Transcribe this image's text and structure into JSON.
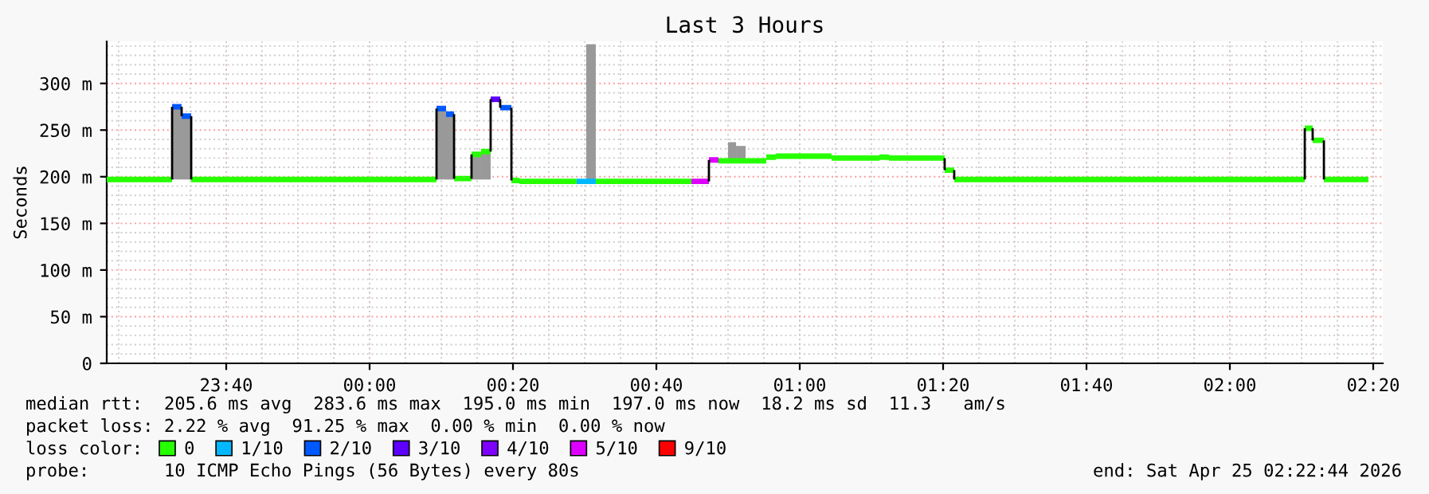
{
  "chart_data": {
    "type": "line",
    "title": "Last 3 Hours",
    "ylabel": "Seconds",
    "legend_title": "loss color:",
    "legend": "bottom",
    "grid": true,
    "xlim": [
      "2026-04-24T23:23:20",
      "2026-04-25T02:21:20"
    ],
    "ylim": [
      0,
      345
    ],
    "xticks": [
      {
        "value": "2026-04-24T23:40",
        "label": "23:40"
      },
      {
        "value": "2026-04-25T00:00",
        "label": "00:00"
      },
      {
        "value": "2026-04-25T00:20",
        "label": "00:20"
      },
      {
        "value": "2026-04-25T00:40",
        "label": "00:40"
      },
      {
        "value": "2026-04-25T01:00",
        "label": "01:00"
      },
      {
        "value": "2026-04-25T01:20",
        "label": "01:20"
      },
      {
        "value": "2026-04-25T01:40",
        "label": "01:40"
      },
      {
        "value": "2026-04-25T02:00",
        "label": "02:00"
      },
      {
        "value": "2026-04-25T02:20",
        "label": "02:20"
      }
    ],
    "yticks": [
      0,
      {
        "value": 50,
        "label": "50 m"
      },
      {
        "value": 100,
        "label": "100 m"
      },
      {
        "value": 150,
        "label": "150 m"
      },
      {
        "value": 200,
        "label": "200 m"
      },
      {
        "value": 250,
        "label": "250 m"
      },
      {
        "value": 300,
        "label": "300 m"
      }
    ],
    "series": [
      {
        "name": "0",
        "color": "#26ff00",
        "x": [
          "2026-04-24T23:23:20",
          "2026-04-24T23:32:27",
          null,
          "2026-04-24T23:35:07",
          "2026-04-25T00:09:20",
          null,
          "2026-04-25T00:11:47",
          "2026-04-25T00:14:13",
          null,
          "2026-04-25T00:14:13",
          "2026-04-25T00:15:33",
          null,
          "2026-04-25T00:15:33",
          "2026-04-25T00:16:53",
          null,
          "2026-04-25T00:19:47",
          "2026-04-25T00:20:53",
          null,
          "2026-04-25T00:20:53",
          "2026-04-25T00:28:53",
          null,
          "2026-04-25T00:31:33",
          "2026-04-25T00:44:53",
          null,
          "2026-04-25T00:48:40",
          "2026-04-25T00:50:00",
          null,
          "2026-04-25T00:50:00",
          "2026-04-25T00:51:07",
          null,
          "2026-04-25T00:51:07",
          "2026-04-25T00:52:27",
          null,
          "2026-04-25T00:52:27",
          "2026-04-25T00:55:20",
          null,
          "2026-04-25T00:55:20",
          "2026-04-25T00:56:40",
          null,
          "2026-04-25T00:56:40",
          "2026-04-25T01:04:27",
          null,
          "2026-04-25T01:04:27",
          "2026-04-25T01:11:07",
          null,
          "2026-04-25T01:11:07",
          "2026-04-25T01:12:27",
          null,
          "2026-04-25T01:12:27",
          "2026-04-25T01:20:13",
          null,
          "2026-04-25T01:20:13",
          "2026-04-25T01:21:33",
          null,
          "2026-04-25T01:21:33",
          "2026-04-25T02:10:27",
          null,
          "2026-04-25T02:10:27",
          "2026-04-25T02:11:33",
          null,
          "2026-04-25T02:11:33",
          "2026-04-25T02:13:07",
          null,
          "2026-04-25T02:13:07",
          "2026-04-25T02:19:20"
        ],
        "values": [
          197,
          197,
          null,
          197,
          197,
          null,
          198,
          198,
          null,
          224,
          224,
          null,
          227,
          227,
          null,
          196,
          196,
          null,
          195,
          195,
          null,
          195,
          195,
          null,
          217,
          217,
          null,
          217,
          217,
          null,
          217,
          217,
          null,
          217,
          217,
          null,
          221,
          221,
          null,
          222,
          222,
          null,
          220,
          220,
          null,
          221,
          221,
          null,
          220,
          220,
          null,
          207,
          207,
          null,
          197,
          197,
          null,
          252,
          252,
          null,
          239,
          239,
          null,
          197,
          197
        ],
        "lower": [
          null,
          null,
          null,
          null,
          null,
          null,
          null,
          null,
          null,
          197,
          197,
          null,
          197,
          197,
          null,
          null,
          null,
          null,
          null,
          null,
          null,
          null,
          null,
          null,
          null,
          null,
          null,
          217,
          217,
          null,
          217,
          217,
          null,
          null,
          null,
          null,
          null,
          null,
          null,
          null,
          null,
          null,
          null,
          null,
          null,
          null,
          null,
          null,
          null,
          null,
          null,
          null,
          null,
          null,
          null,
          null,
          null,
          null,
          null,
          null,
          null,
          null,
          null,
          null,
          null
        ],
        "upper": [
          null,
          null,
          null,
          null,
          null,
          null,
          null,
          null,
          null,
          224,
          224,
          null,
          227,
          227,
          null,
          null,
          null,
          null,
          null,
          null,
          null,
          null,
          null,
          null,
          null,
          null,
          null,
          237,
          237,
          null,
          233,
          233,
          null,
          null,
          null,
          null,
          null,
          null,
          null,
          null,
          null,
          null,
          null,
          null,
          null,
          null,
          null,
          null,
          null,
          null,
          null,
          null,
          null,
          null,
          null,
          null,
          null,
          null,
          null,
          null,
          null,
          null,
          null,
          null,
          null
        ]
      },
      {
        "name": "1/10",
        "color": "#00b8ff",
        "x": [
          "2026-04-25T00:28:53",
          "2026-04-25T00:30:13",
          null,
          "2026-04-25T00:30:13",
          "2026-04-25T00:31:33"
        ],
        "values": [
          195,
          195,
          null,
          195,
          195
        ],
        "lower": [
          null,
          null,
          null,
          195,
          195
        ],
        "upper": [
          null,
          null,
          null,
          342,
          342
        ]
      },
      {
        "name": "2/10",
        "color": "#0059ff",
        "x": [
          "2026-04-24T23:32:27",
          "2026-04-24T23:33:47",
          null,
          "2026-04-24T23:33:47",
          "2026-04-24T23:35:07",
          null,
          "2026-04-25T00:09:20",
          "2026-04-25T00:10:40",
          null,
          "2026-04-25T00:10:40",
          "2026-04-25T00:11:47",
          null,
          "2026-04-25T00:18:13",
          "2026-04-25T00:19:47"
        ],
        "values": [
          275,
          275,
          null,
          265,
          265,
          null,
          273,
          273,
          null,
          267,
          267,
          null,
          274,
          274
        ],
        "lower": [
          197,
          197,
          null,
          197,
          197,
          null,
          197,
          197,
          null,
          197,
          197,
          null,
          null,
          null
        ],
        "upper": [
          275,
          275,
          null,
          265,
          265,
          null,
          273,
          273,
          null,
          267,
          267,
          null,
          null,
          null
        ]
      },
      {
        "name": "3/10",
        "color": "#5e00ff",
        "x": [
          "2026-04-25T00:16:53",
          "2026-04-25T00:18:13"
        ],
        "values": [
          283,
          283
        ]
      },
      {
        "name": "4/10",
        "color": "#7e00ff"
      },
      {
        "name": "5/10",
        "color": "#dd00ff",
        "x": [
          "2026-04-25T00:44:53",
          "2026-04-25T00:47:20",
          null,
          "2026-04-25T00:47:20",
          "2026-04-25T00:48:40"
        ],
        "values": [
          195,
          195,
          null,
          218,
          218
        ]
      },
      {
        "name": "9/10",
        "color": "#ff0000"
      },
      {
        "color": "#000000",
        "x": [
          "2026-04-24T23:32:27",
          "2026-04-24T23:32:27",
          null,
          "2026-04-24T23:33:47",
          "2026-04-24T23:33:47",
          null,
          "2026-04-24T23:35:07",
          "2026-04-24T23:35:07",
          null,
          "2026-04-25T00:09:20",
          "2026-04-25T00:09:20",
          null,
          "2026-04-25T00:11:47",
          "2026-04-25T00:11:47",
          null,
          "2026-04-25T00:14:13",
          "2026-04-25T00:14:13",
          null,
          "2026-04-25T00:16:53",
          "2026-04-25T00:16:53",
          null,
          "2026-04-25T00:18:13",
          "2026-04-25T00:18:13",
          null,
          "2026-04-25T00:19:47",
          "2026-04-25T00:19:47",
          null,
          "2026-04-25T00:47:20",
          "2026-04-25T00:47:20",
          null,
          "2026-04-25T01:20:13",
          "2026-04-25T01:20:13",
          null,
          "2026-04-25T01:21:33",
          "2026-04-25T01:21:33",
          null,
          "2026-04-25T02:10:27",
          "2026-04-25T02:10:27",
          null,
          "2026-04-25T02:11:33",
          "2026-04-25T02:11:33",
          null,
          "2026-04-25T02:13:07",
          "2026-04-25T02:13:07"
        ],
        "values": [
          197,
          275,
          null,
          275,
          265,
          null,
          265,
          197,
          null,
          197,
          273,
          null,
          267,
          198,
          null,
          198,
          224,
          null,
          227,
          283,
          null,
          283,
          274,
          null,
          274,
          196,
          null,
          195,
          218,
          null,
          220,
          207,
          null,
          207,
          197,
          null,
          197,
          252,
          null,
          252,
          239,
          null,
          239,
          197
        ]
      }
    ],
    "annotations": [
      "median rtt:  205.6 ms avg  283.6 ms max  195.0 ms min  197.0 ms now  18.2 ms sd  11.3   am/s",
      "packet loss: 2.22 % avg  91.25 % max  0.00 % min  0.00 % now",
      "probe:       10 ICMP Echo Pings (56 Bytes) every 80s",
      "end: Sat Apr 25 02:22:44 2026"
    ]
  }
}
